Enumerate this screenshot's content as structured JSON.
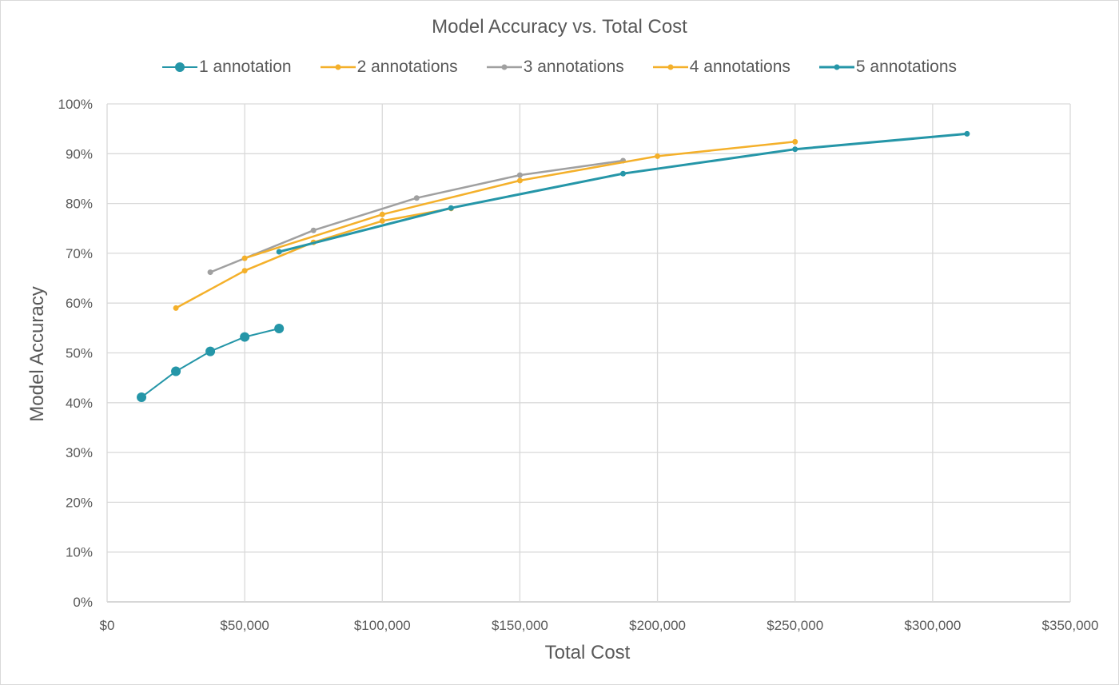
{
  "chart_data": {
    "type": "line",
    "title": "Model Accuracy vs. Total Cost",
    "xlabel": "Total Cost",
    "ylabel": "Model Accuracy",
    "xlim": [
      0,
      350000
    ],
    "ylim": [
      0,
      1
    ],
    "xticks": [
      0,
      50000,
      100000,
      150000,
      200000,
      250000,
      300000,
      350000
    ],
    "xtick_labels": [
      "$0",
      "$50,000",
      "$100,000",
      "$150,000",
      "$200,000",
      "$250,000",
      "$300,000",
      "$350,000"
    ],
    "yticks": [
      0,
      0.1,
      0.2,
      0.3,
      0.4,
      0.5,
      0.6,
      0.7,
      0.8,
      0.9,
      1.0
    ],
    "ytick_labels": [
      "0%",
      "10%",
      "20%",
      "30%",
      "40%",
      "50%",
      "60%",
      "70%",
      "80%",
      "90%",
      "100%"
    ],
    "grid": true,
    "legend_position": "top",
    "series": [
      {
        "name": "1 annotation",
        "color": "#2596a8",
        "marker_size": 6,
        "line_width": 2,
        "x": [
          12500,
          25000,
          37500,
          50000,
          62500
        ],
        "y": [
          0.411,
          0.463,
          0.503,
          0.532,
          0.549
        ]
      },
      {
        "name": "2 annotations",
        "color": "#f4b02a",
        "marker_size": 3.5,
        "line_width": 2.5,
        "x": [
          25000,
          50000,
          75000,
          100000,
          125000
        ],
        "y": [
          0.59,
          0.665,
          0.722,
          0.765,
          0.79
        ]
      },
      {
        "name": "3 annotations",
        "color": "#a0a0a0",
        "marker_size": 3.5,
        "line_width": 2.5,
        "x": [
          37500,
          75000,
          112500,
          150000,
          187500
        ],
        "y": [
          0.662,
          0.746,
          0.811,
          0.857,
          0.886
        ]
      },
      {
        "name": "4 annotations",
        "color": "#f4b02a",
        "marker_size": 3.5,
        "line_width": 2.5,
        "x": [
          50000,
          100000,
          150000,
          200000,
          250000
        ],
        "y": [
          0.69,
          0.778,
          0.846,
          0.895,
          0.924
        ]
      },
      {
        "name": "5 annotations",
        "color": "#2596a8",
        "marker_size": 3.5,
        "line_width": 3,
        "x": [
          62500,
          125000,
          187500,
          250000,
          312500
        ],
        "y": [
          0.703,
          0.791,
          0.86,
          0.909,
          0.94
        ]
      }
    ]
  }
}
